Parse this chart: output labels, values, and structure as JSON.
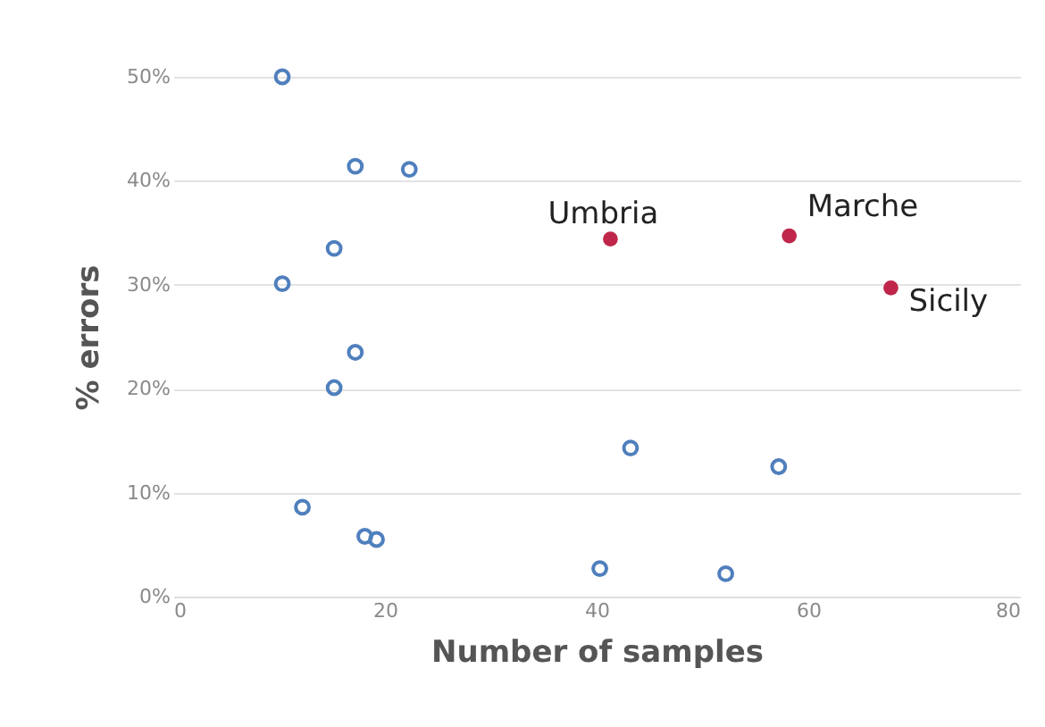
{
  "chart_data": {
    "type": "scatter",
    "xlabel": "Number of samples",
    "ylabel": "% errors",
    "xlim": [
      0,
      80
    ],
    "xticks": [
      0,
      20,
      40,
      60,
      80
    ],
    "ylim": [
      0,
      50
    ],
    "yticks": [
      {
        "value": 0,
        "label": "0%"
      },
      {
        "value": 10,
        "label": "10%"
      },
      {
        "value": 20,
        "label": "20%"
      },
      {
        "value": 30,
        "label": "30%"
      },
      {
        "value": 40,
        "label": "40%"
      },
      {
        "value": 50,
        "label": "50%"
      }
    ],
    "grid": "y",
    "marker": "circle",
    "series": [
      {
        "color": "#4f7fbd",
        "x": [
          10.3,
          17.2,
          22.3,
          15.2,
          10.3,
          17.2,
          15.2,
          43.2,
          57.2,
          12.2,
          18.1,
          19.2,
          40.3,
          52.2
        ],
        "values": [
          50,
          41.4,
          41.1,
          33.5,
          30.1,
          23.5,
          20.1,
          14.3,
          12.5,
          8.6,
          5.8,
          5.5,
          2.7,
          2.2
        ]
      },
      {
        "color": "#c0264a",
        "x": [
          41.3,
          58.2,
          67.8
        ],
        "values": [
          34.4,
          34.7,
          29.7
        ]
      }
    ],
    "annotations": [
      {
        "text": "Umbria",
        "x": 41.3,
        "y": 34.4
      },
      {
        "text": "Marche",
        "x": 58.2,
        "y": 34.7
      },
      {
        "text": "Sicily",
        "x": 67.8,
        "y": 29.7
      }
    ]
  }
}
